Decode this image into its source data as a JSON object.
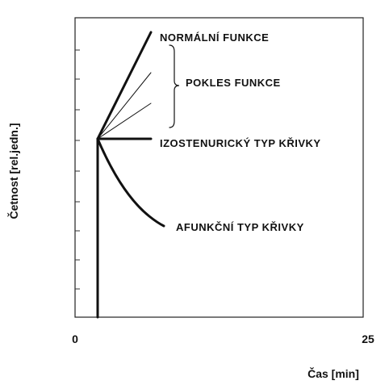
{
  "y_axis": {
    "label": "Četnost [rel.jedn.]"
  },
  "x_axis": {
    "label": "Čas [min]",
    "ticks": [
      0,
      25
    ]
  },
  "curves": [
    {
      "label": "NORMÁLNÍ FUNKCE"
    },
    {
      "label": "POKLES FUNKCE"
    },
    {
      "label": "IZOSTENURICKÝ TYP KŘIVKY"
    },
    {
      "label": "AFUNKČNÍ TYP KŘIVKY"
    }
  ]
}
